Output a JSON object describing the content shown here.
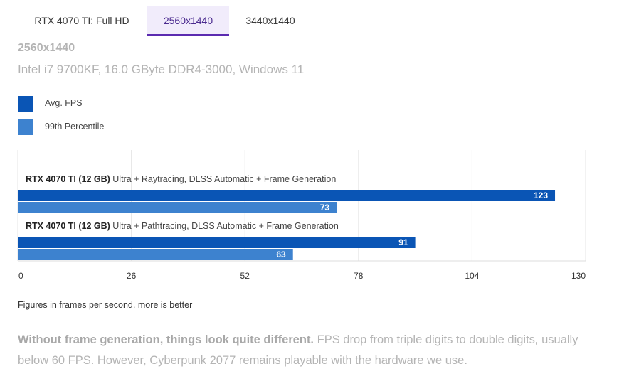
{
  "tabs": [
    {
      "label": "RTX 4070 TI: Full HD",
      "active": false
    },
    {
      "label": "2560x1440",
      "active": true
    },
    {
      "label": "3440x1440",
      "active": false
    }
  ],
  "heading": "2560x1440",
  "subtitle": "Intel i7 9700KF, 16.0 GByte DDR4-3000, Windows 11",
  "colors": {
    "avg_fps": "#0a55b5",
    "p99": "#3d82cf",
    "tab_active_bg": "#f1ecfb",
    "tab_active_border": "#5b2bb0",
    "muted_text": "#b4b4b4",
    "grid": "#e6e6e6"
  },
  "chart_data": {
    "type": "bar",
    "orientation": "horizontal",
    "legend": {
      "placement": "top-left"
    },
    "grid": true,
    "xlim": [
      0,
      130
    ],
    "xticks": [
      0,
      26,
      52,
      78,
      104,
      130
    ],
    "series": [
      {
        "name": "Avg. FPS",
        "color": "#0a55b5",
        "values": [
          123,
          91
        ]
      },
      {
        "name": "99th Percentile",
        "color": "#3d82cf",
        "values": [
          73,
          63
        ]
      }
    ],
    "categories": [
      {
        "gpu": "RTX 4070 TI (12 GB)",
        "setting": "Ultra + Raytracing, DLSS Automatic + Frame Generation"
      },
      {
        "gpu": "RTX 4070 TI (12 GB)",
        "setting": "Ultra + Pathtracing, DLSS Automatic + Frame Generation"
      }
    ]
  },
  "caption": "Figures in frames per second, more is better",
  "paragraph": {
    "bold": "Without frame generation, things look quite different.",
    "rest": " FPS drop from triple digits to double digits, usually below 60 FPS. However, Cyberpunk 2077 remains playable with the hardware we use."
  }
}
